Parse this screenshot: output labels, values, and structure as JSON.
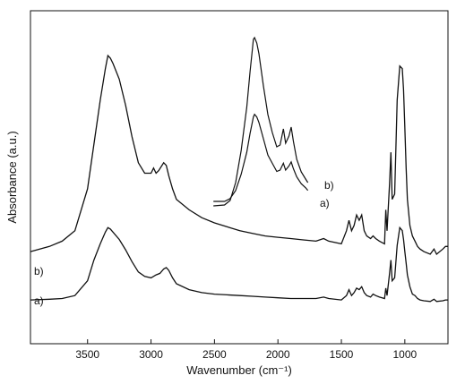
{
  "chart_data": {
    "type": "line",
    "title": "",
    "xlabel": "Wavenumber (cm⁻¹)",
    "ylabel": "Absorbance (a.u.)",
    "xlim": [
      3950,
      660
    ],
    "ylim": [
      0,
      1
    ],
    "x_reversed": true,
    "grid": false,
    "legend": "none",
    "xticks": [
      3500,
      3000,
      2500,
      2000,
      1500,
      1000
    ],
    "xtick_labels": [
      "3500",
      "3000",
      "2500",
      "2000",
      "1500",
      "1000"
    ],
    "series": [
      {
        "label": "a)",
        "points": [
          [
            3950,
            0.09
          ],
          [
            3800,
            0.095
          ],
          [
            3700,
            0.1
          ],
          [
            3600,
            0.12
          ],
          [
            3500,
            0.22
          ],
          [
            3450,
            0.36
          ],
          [
            3400,
            0.47
          ],
          [
            3360,
            0.55
          ],
          [
            3340,
            0.58
          ],
          [
            3320,
            0.57
          ],
          [
            3300,
            0.55
          ],
          [
            3250,
            0.5
          ],
          [
            3200,
            0.43
          ],
          [
            3150,
            0.35
          ],
          [
            3100,
            0.28
          ],
          [
            3050,
            0.25
          ],
          [
            3000,
            0.24
          ],
          [
            2960,
            0.26
          ],
          [
            2930,
            0.27
          ],
          [
            2900,
            0.3
          ],
          [
            2880,
            0.31
          ],
          [
            2860,
            0.29
          ],
          [
            2830,
            0.24
          ],
          [
            2800,
            0.2
          ],
          [
            2700,
            0.16
          ],
          [
            2600,
            0.14
          ],
          [
            2500,
            0.13
          ],
          [
            2400,
            0.125
          ],
          [
            2300,
            0.12
          ],
          [
            2200,
            0.115
          ],
          [
            2100,
            0.11
          ],
          [
            2000,
            0.105
          ],
          [
            1900,
            0.1
          ],
          [
            1800,
            0.1
          ],
          [
            1700,
            0.1
          ],
          [
            1640,
            0.11
          ],
          [
            1600,
            0.1
          ],
          [
            1500,
            0.09
          ],
          [
            1460,
            0.12
          ],
          [
            1440,
            0.16
          ],
          [
            1420,
            0.12
          ],
          [
            1400,
            0.14
          ],
          [
            1380,
            0.17
          ],
          [
            1360,
            0.16
          ],
          [
            1340,
            0.18
          ],
          [
            1320,
            0.14
          ],
          [
            1300,
            0.12
          ],
          [
            1270,
            0.11
          ],
          [
            1250,
            0.13
          ],
          [
            1230,
            0.12
          ],
          [
            1200,
            0.11
          ],
          [
            1160,
            0.1
          ],
          [
            1150,
            0.17
          ],
          [
            1140,
            0.12
          ],
          [
            1120,
            0.27
          ],
          [
            1110,
            0.36
          ],
          [
            1100,
            0.22
          ],
          [
            1080,
            0.24
          ],
          [
            1060,
            0.46
          ],
          [
            1040,
            0.58
          ],
          [
            1020,
            0.56
          ],
          [
            1010,
            0.5
          ],
          [
            1000,
            0.42
          ],
          [
            990,
            0.34
          ],
          [
            980,
            0.26
          ],
          [
            960,
            0.18
          ],
          [
            940,
            0.13
          ],
          [
            920,
            0.12
          ],
          [
            900,
            0.1
          ],
          [
            880,
            0.09
          ],
          [
            850,
            0.085
          ],
          [
            800,
            0.08
          ],
          [
            770,
            0.095
          ],
          [
            750,
            0.08
          ],
          [
            700,
            0.085
          ],
          [
            680,
            0.09
          ],
          [
            660,
            0.09
          ]
        ]
      },
      {
        "label": "b)",
        "points": [
          [
            3950,
            0.14
          ],
          [
            3800,
            0.16
          ],
          [
            3700,
            0.18
          ],
          [
            3600,
            0.22
          ],
          [
            3500,
            0.38
          ],
          [
            3450,
            0.55
          ],
          [
            3400,
            0.72
          ],
          [
            3360,
            0.84
          ],
          [
            3340,
            0.89
          ],
          [
            3320,
            0.88
          ],
          [
            3300,
            0.86
          ],
          [
            3250,
            0.8
          ],
          [
            3200,
            0.7
          ],
          [
            3150,
            0.58
          ],
          [
            3100,
            0.48
          ],
          [
            3050,
            0.44
          ],
          [
            3000,
            0.44
          ],
          [
            2990,
            0.45
          ],
          [
            2980,
            0.46
          ],
          [
            2960,
            0.44
          ],
          [
            2940,
            0.45
          ],
          [
            2900,
            0.48
          ],
          [
            2880,
            0.47
          ],
          [
            2860,
            0.43
          ],
          [
            2830,
            0.38
          ],
          [
            2800,
            0.34
          ],
          [
            2700,
            0.3
          ],
          [
            2600,
            0.27
          ],
          [
            2500,
            0.25
          ],
          [
            2400,
            0.235
          ],
          [
            2300,
            0.22
          ],
          [
            2200,
            0.21
          ],
          [
            2100,
            0.2
          ],
          [
            2000,
            0.195
          ],
          [
            1900,
            0.19
          ],
          [
            1800,
            0.185
          ],
          [
            1700,
            0.18
          ],
          [
            1640,
            0.19
          ],
          [
            1600,
            0.18
          ],
          [
            1500,
            0.17
          ],
          [
            1460,
            0.22
          ],
          [
            1440,
            0.26
          ],
          [
            1420,
            0.22
          ],
          [
            1400,
            0.24
          ],
          [
            1380,
            0.28
          ],
          [
            1360,
            0.26
          ],
          [
            1340,
            0.28
          ],
          [
            1320,
            0.22
          ],
          [
            1300,
            0.2
          ],
          [
            1270,
            0.19
          ],
          [
            1250,
            0.2
          ],
          [
            1230,
            0.19
          ],
          [
            1200,
            0.18
          ],
          [
            1160,
            0.17
          ],
          [
            1150,
            0.3
          ],
          [
            1140,
            0.22
          ],
          [
            1120,
            0.4
          ],
          [
            1110,
            0.52
          ],
          [
            1100,
            0.34
          ],
          [
            1080,
            0.36
          ],
          [
            1060,
            0.72
          ],
          [
            1040,
            0.85
          ],
          [
            1020,
            0.84
          ],
          [
            1010,
            0.76
          ],
          [
            1000,
            0.62
          ],
          [
            990,
            0.46
          ],
          [
            980,
            0.34
          ],
          [
            960,
            0.24
          ],
          [
            940,
            0.2
          ],
          [
            920,
            0.18
          ],
          [
            900,
            0.16
          ],
          [
            880,
            0.15
          ],
          [
            850,
            0.14
          ],
          [
            800,
            0.13
          ],
          [
            770,
            0.15
          ],
          [
            750,
            0.13
          ],
          [
            700,
            0.15
          ],
          [
            680,
            0.16
          ],
          [
            660,
            0.16
          ]
        ]
      }
    ],
    "inset": {
      "xlim": [
        2500,
        1500
      ],
      "ylim": [
        0,
        1
      ],
      "series": [
        {
          "label": "a)",
          "points": [
            [
              2450,
              0.02
            ],
            [
              2350,
              0.02
            ],
            [
              2300,
              0.04
            ],
            [
              2250,
              0.1
            ],
            [
              2200,
              0.22
            ],
            [
              2150,
              0.38
            ],
            [
              2120,
              0.52
            ],
            [
              2100,
              0.6
            ],
            [
              2090,
              0.64
            ],
            [
              2080,
              0.66
            ],
            [
              2060,
              0.64
            ],
            [
              2040,
              0.6
            ],
            [
              2000,
              0.48
            ],
            [
              1960,
              0.36
            ],
            [
              1920,
              0.3
            ],
            [
              1880,
              0.24
            ],
            [
              1850,
              0.25
            ],
            [
              1820,
              0.3
            ],
            [
              1800,
              0.25
            ],
            [
              1770,
              0.28
            ],
            [
              1750,
              0.31
            ],
            [
              1730,
              0.26
            ],
            [
              1700,
              0.2
            ],
            [
              1660,
              0.15
            ],
            [
              1620,
              0.12
            ],
            [
              1600,
              0.1
            ]
          ]
        },
        {
          "label": "b)",
          "points": [
            [
              2450,
              0.03
            ],
            [
              2350,
              0.035
            ],
            [
              2300,
              0.06
            ],
            [
              2250,
              0.16
            ],
            [
              2200,
              0.34
            ],
            [
              2150,
              0.58
            ],
            [
              2120,
              0.78
            ],
            [
              2100,
              0.9
            ],
            [
              2090,
              0.96
            ],
            [
              2080,
              0.97
            ],
            [
              2060,
              0.94
            ],
            [
              2040,
              0.88
            ],
            [
              2000,
              0.7
            ],
            [
              1960,
              0.54
            ],
            [
              1920,
              0.44
            ],
            [
              1880,
              0.36
            ],
            [
              1850,
              0.37
            ],
            [
              1820,
              0.46
            ],
            [
              1800,
              0.38
            ],
            [
              1770,
              0.42
            ],
            [
              1750,
              0.47
            ],
            [
              1730,
              0.39
            ],
            [
              1700,
              0.29
            ],
            [
              1660,
              0.22
            ],
            [
              1620,
              0.18
            ],
            [
              1600,
              0.16
            ]
          ]
        }
      ]
    }
  }
}
